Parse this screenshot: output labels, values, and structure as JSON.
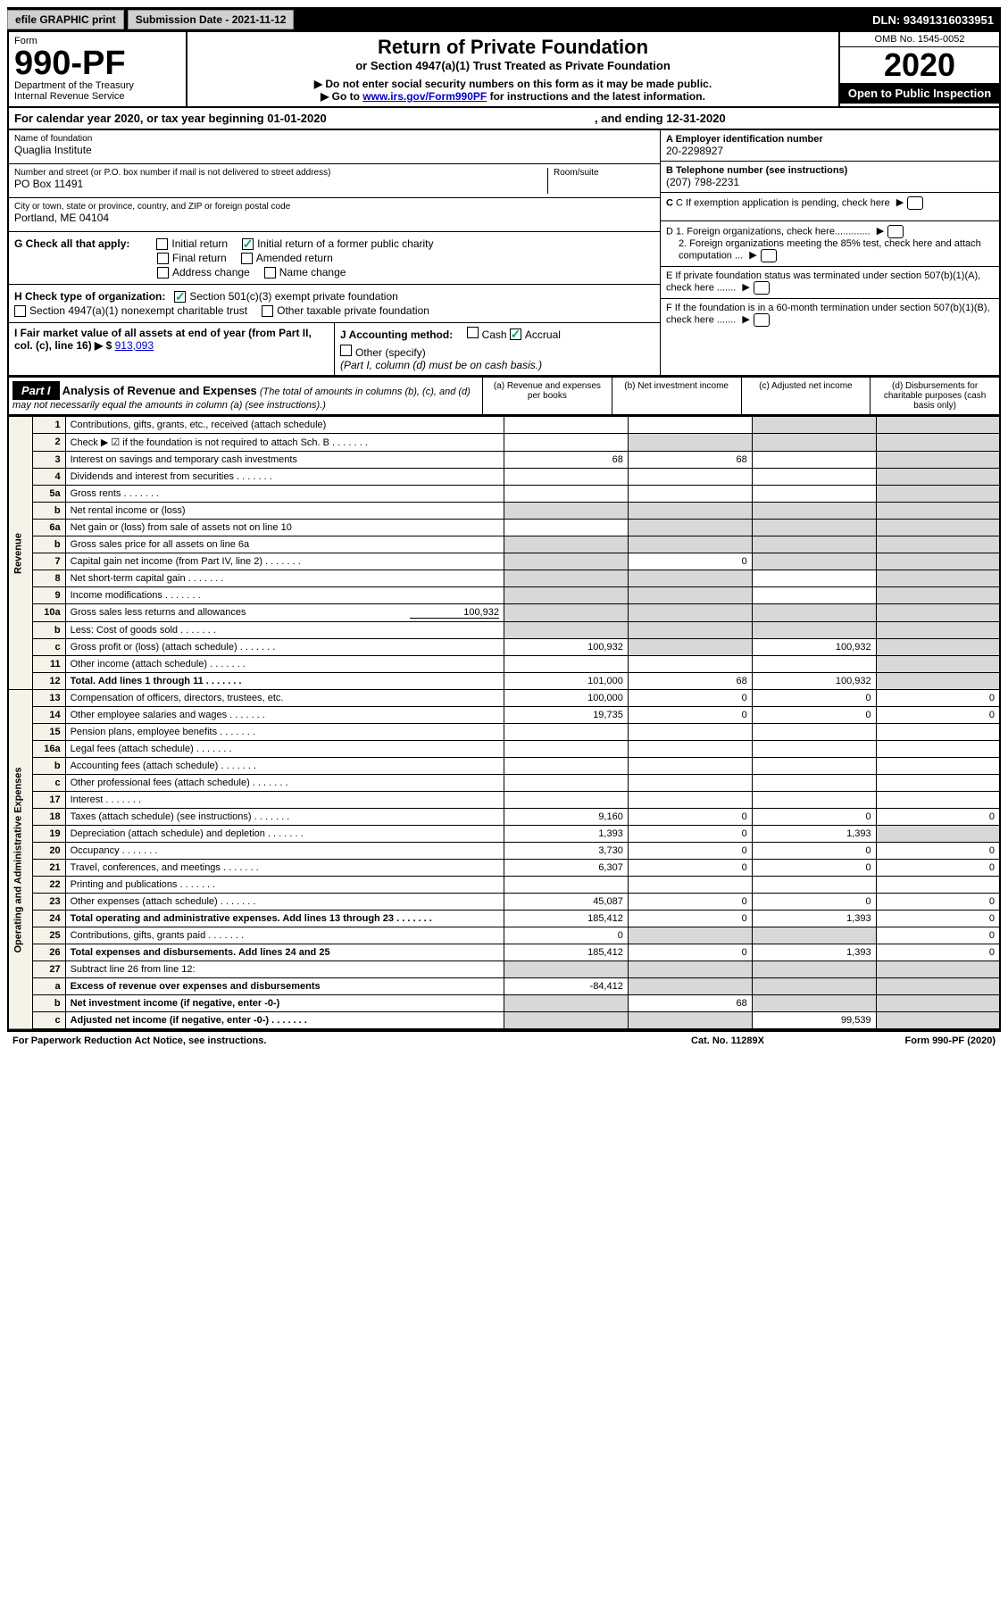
{
  "topbar": {
    "efile": "efile GRAPHIC print",
    "submission": "Submission Date - 2021-11-12",
    "dln": "DLN: 93491316033951"
  },
  "header": {
    "form_label": "Form",
    "form_number": "990-PF",
    "dept": "Department of the Treasury",
    "irs": "Internal Revenue Service",
    "title": "Return of Private Foundation",
    "subtitle1": "or Section 4947(a)(1) Trust Treated as Private Foundation",
    "subtitle2": "▶ Do not enter social security numbers on this form as it may be made public.",
    "subtitle3_pre": "▶ Go to ",
    "subtitle3_link": "www.irs.gov/Form990PF",
    "subtitle3_post": " for instructions and the latest information.",
    "omb": "OMB No. 1545-0052",
    "year": "2020",
    "open": "Open to Public Inspection"
  },
  "calendar": {
    "line_a": "For calendar year 2020, or tax year beginning 01-01-2020",
    "line_b": ", and ending 12-31-2020"
  },
  "info": {
    "name_label": "Name of foundation",
    "name": "Quaglia Institute",
    "addr_label": "Number and street (or P.O. box number if mail is not delivered to street address)",
    "addr": "PO Box 11491",
    "room_label": "Room/suite",
    "city_label": "City or town, state or province, country, and ZIP or foreign postal code",
    "city": "Portland, ME  04104",
    "ein_label": "A Employer identification number",
    "ein": "20-2298927",
    "phone_label": "B Telephone number (see instructions)",
    "phone": "(207) 798-2231",
    "c": "C If exemption application is pending, check here",
    "d1": "D 1. Foreign organizations, check here.............",
    "d2": "2. Foreign organizations meeting the 85% test, check here and attach computation ...",
    "e": "E If private foundation status was terminated under section 507(b)(1)(A), check here .......",
    "f": "F If the foundation is in a 60-month termination under section 507(b)(1)(B), check here .......",
    "g_label": "G Check all that apply:",
    "g_initial": "Initial return",
    "g_initial_former": "Initial return of a former public charity",
    "g_final": "Final return",
    "g_amended": "Amended return",
    "g_address": "Address change",
    "g_name": "Name change",
    "h_label": "H Check type of organization:",
    "h_501c3": "Section 501(c)(3) exempt private foundation",
    "h_4947": "Section 4947(a)(1) nonexempt charitable trust",
    "h_other": "Other taxable private foundation",
    "i_label": "I Fair market value of all assets at end of year (from Part II, col. (c), line 16) ▶ $",
    "i_value": "913,093",
    "j_label": "J Accounting method:",
    "j_cash": "Cash",
    "j_accrual": "Accrual",
    "j_other": "Other (specify)",
    "j_note": "(Part I, column (d) must be on cash basis.)"
  },
  "part1": {
    "label": "Part I",
    "title": "Analysis of Revenue and Expenses",
    "note": " (The total of amounts in columns (b), (c), and (d) may not necessarily equal the amounts in column (a) (see instructions).)",
    "col_a": "(a) Revenue and expenses per books",
    "col_b": "(b) Net investment income",
    "col_c": "(c) Adjusted net income",
    "col_d": "(d) Disbursements for charitable purposes (cash basis only)"
  },
  "side_revenue": "Revenue",
  "side_expenses": "Operating and Administrative Expenses",
  "rows": [
    {
      "n": "1",
      "d": "Contributions, gifts, grants, etc., received (attach schedule)",
      "a": "",
      "b": "",
      "c_grey": true,
      "d_grey": true
    },
    {
      "n": "2",
      "d": "Check ▶ ☑ if the foundation is not required to attach Sch. B",
      "a": "",
      "b_grey": true,
      "c_grey": true,
      "d_grey": true,
      "dots": true
    },
    {
      "n": "3",
      "d": "Interest on savings and temporary cash investments",
      "a": "68",
      "b": "68",
      "c": "",
      "d_grey": true
    },
    {
      "n": "4",
      "d": "Dividends and interest from securities",
      "a": "",
      "b": "",
      "c": "",
      "d_grey": true,
      "dots": true
    },
    {
      "n": "5a",
      "d": "Gross rents",
      "a": "",
      "b": "",
      "c": "",
      "d_grey": true,
      "dots": true
    },
    {
      "n": "b",
      "d": "Net rental income or (loss)",
      "a_grey": true,
      "b_grey": true,
      "c_grey": true,
      "d_grey": true
    },
    {
      "n": "6a",
      "d": "Net gain or (loss) from sale of assets not on line 10",
      "a": "",
      "b_grey": true,
      "c_grey": true,
      "d_grey": true
    },
    {
      "n": "b",
      "d": "Gross sales price for all assets on line 6a",
      "a_grey": true,
      "b_grey": true,
      "c_grey": true,
      "d_grey": true
    },
    {
      "n": "7",
      "d": "Capital gain net income (from Part IV, line 2)",
      "a_grey": true,
      "b": "0",
      "c_grey": true,
      "d_grey": true,
      "dots": true
    },
    {
      "n": "8",
      "d": "Net short-term capital gain",
      "a_grey": true,
      "b_grey": true,
      "c": "",
      "d_grey": true,
      "dots": true
    },
    {
      "n": "9",
      "d": "Income modifications",
      "a_grey": true,
      "b_grey": true,
      "c": "",
      "d_grey": true,
      "dots": true
    },
    {
      "n": "10a",
      "d": "Gross sales less returns and allowances",
      "inline": "100,932",
      "a_grey": true,
      "b_grey": true,
      "c_grey": true,
      "d_grey": true
    },
    {
      "n": "b",
      "d": "Less: Cost of goods sold",
      "a_grey": true,
      "b_grey": true,
      "c_grey": true,
      "d_grey": true,
      "dots": true
    },
    {
      "n": "c",
      "d": "Gross profit or (loss) (attach schedule)",
      "a": "100,932",
      "b_grey": true,
      "c": "100,932",
      "d_grey": true,
      "dots": true
    },
    {
      "n": "11",
      "d": "Other income (attach schedule)",
      "a": "",
      "b": "",
      "c": "",
      "d_grey": true,
      "dots": true
    },
    {
      "n": "12",
      "d": "Total. Add lines 1 through 11",
      "a": "101,000",
      "b": "68",
      "c": "100,932",
      "d_grey": true,
      "bold": true,
      "dots": true
    }
  ],
  "exp_rows": [
    {
      "n": "13",
      "d": "Compensation of officers, directors, trustees, etc.",
      "a": "100,000",
      "b": "0",
      "c": "0",
      "dd": "0"
    },
    {
      "n": "14",
      "d": "Other employee salaries and wages",
      "a": "19,735",
      "b": "0",
      "c": "0",
      "dd": "0",
      "dots": true
    },
    {
      "n": "15",
      "d": "Pension plans, employee benefits",
      "a": "",
      "b": "",
      "c": "",
      "dd": "",
      "dots": true
    },
    {
      "n": "16a",
      "d": "Legal fees (attach schedule)",
      "a": "",
      "b": "",
      "c": "",
      "dd": "",
      "dots": true
    },
    {
      "n": "b",
      "d": "Accounting fees (attach schedule)",
      "a": "",
      "b": "",
      "c": "",
      "dd": "",
      "dots": true
    },
    {
      "n": "c",
      "d": "Other professional fees (attach schedule)",
      "a": "",
      "b": "",
      "c": "",
      "dd": "",
      "dots": true
    },
    {
      "n": "17",
      "d": "Interest",
      "a": "",
      "b": "",
      "c": "",
      "dd": "",
      "dots": true
    },
    {
      "n": "18",
      "d": "Taxes (attach schedule) (see instructions)",
      "a": "9,160",
      "b": "0",
      "c": "0",
      "dd": "0",
      "dots": true
    },
    {
      "n": "19",
      "d": "Depreciation (attach schedule) and depletion",
      "a": "1,393",
      "b": "0",
      "c": "1,393",
      "dd_grey": true,
      "dots": true
    },
    {
      "n": "20",
      "d": "Occupancy",
      "a": "3,730",
      "b": "0",
      "c": "0",
      "dd": "0",
      "dots": true
    },
    {
      "n": "21",
      "d": "Travel, conferences, and meetings",
      "a": "6,307",
      "b": "0",
      "c": "0",
      "dd": "0",
      "dots": true
    },
    {
      "n": "22",
      "d": "Printing and publications",
      "a": "",
      "b": "",
      "c": "",
      "dd": "",
      "dots": true
    },
    {
      "n": "23",
      "d": "Other expenses (attach schedule)",
      "a": "45,087",
      "b": "0",
      "c": "0",
      "dd": "0",
      "dots": true
    },
    {
      "n": "24",
      "d": "Total operating and administrative expenses. Add lines 13 through 23",
      "a": "185,412",
      "b": "0",
      "c": "1,393",
      "dd": "0",
      "bold": true,
      "dots": true
    },
    {
      "n": "25",
      "d": "Contributions, gifts, grants paid",
      "a": "0",
      "b_grey": true,
      "c_grey": true,
      "dd": "0",
      "dots": true
    },
    {
      "n": "26",
      "d": "Total expenses and disbursements. Add lines 24 and 25",
      "a": "185,412",
      "b": "0",
      "c": "1,393",
      "dd": "0",
      "bold": true
    },
    {
      "n": "27",
      "d": "Subtract line 26 from line 12:",
      "a_grey": true,
      "b_grey": true,
      "c_grey": true,
      "dd_grey": true
    },
    {
      "n": "a",
      "d": "Excess of revenue over expenses and disbursements",
      "a": "-84,412",
      "b_grey": true,
      "c_grey": true,
      "dd_grey": true,
      "bold": true
    },
    {
      "n": "b",
      "d": "Net investment income (if negative, enter -0-)",
      "a_grey": true,
      "b": "68",
      "c_grey": true,
      "dd_grey": true,
      "bold": true
    },
    {
      "n": "c",
      "d": "Adjusted net income (if negative, enter -0-)",
      "a_grey": true,
      "b_grey": true,
      "c": "99,539",
      "dd_grey": true,
      "bold": true,
      "dots": true
    }
  ],
  "footer": {
    "left": "For Paperwork Reduction Act Notice, see instructions.",
    "mid": "Cat. No. 11289X",
    "right": "Form 990-PF (2020)"
  }
}
